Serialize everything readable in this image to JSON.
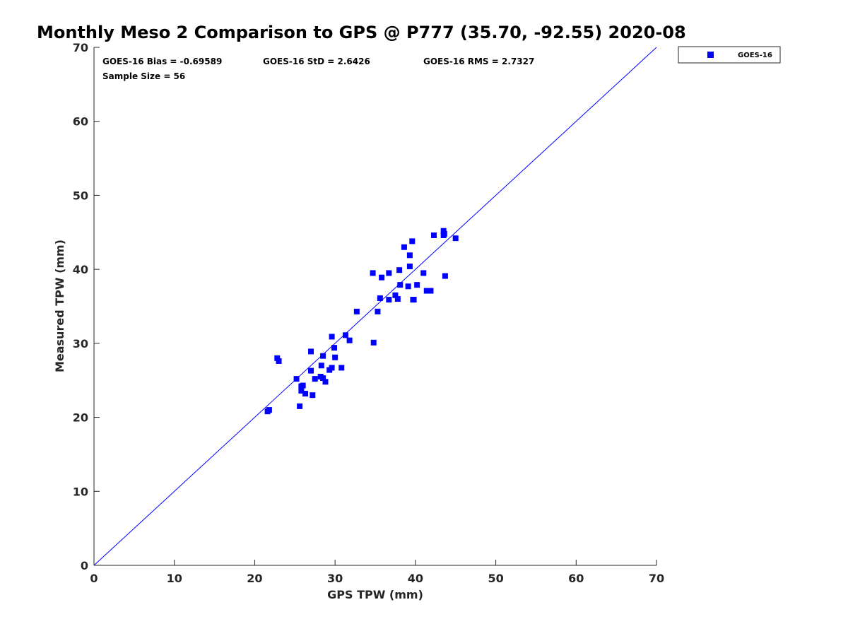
{
  "chart_data": {
    "type": "scatter",
    "title": "Monthly Meso 2 Comparison to GPS @ P777 (35.70, -92.55) 2020-08",
    "xlabel": "GPS TPW (mm)",
    "ylabel": "Measured TPW (mm)",
    "xlim": [
      0,
      70
    ],
    "ylim": [
      0,
      70
    ],
    "xticks": [
      0,
      10,
      20,
      30,
      40,
      50,
      60,
      70
    ],
    "yticks": [
      0,
      10,
      20,
      30,
      40,
      50,
      60,
      70
    ],
    "grid": false,
    "legend_position": "outside top-right",
    "annotations": {
      "bias": "GOES-16 Bias = -0.69589",
      "std": "GOES-16 StD = 2.6426",
      "rms": "GOES-16 RMS = 2.7327",
      "sample": "Sample Size = 56"
    },
    "reference_line": {
      "type": "one-to-one",
      "x": [
        0,
        70
      ],
      "y": [
        0,
        70
      ],
      "color": "#0000ff"
    },
    "series": [
      {
        "name": "GOES-16",
        "color": "#0000ff",
        "marker": "square",
        "points": [
          [
            21.6,
            20.8
          ],
          [
            21.8,
            21.0
          ],
          [
            22.8,
            28.0
          ],
          [
            23.0,
            27.6
          ],
          [
            25.2,
            25.2
          ],
          [
            25.6,
            21.5
          ],
          [
            25.8,
            24.2
          ],
          [
            25.8,
            23.6
          ],
          [
            26.0,
            24.3
          ],
          [
            26.3,
            23.2
          ],
          [
            27.0,
            28.9
          ],
          [
            27.0,
            26.3
          ],
          [
            27.2,
            23.0
          ],
          [
            27.5,
            25.2
          ],
          [
            28.2,
            25.5
          ],
          [
            28.3,
            27.0
          ],
          [
            28.5,
            28.3
          ],
          [
            28.5,
            25.3
          ],
          [
            28.8,
            24.8
          ],
          [
            29.3,
            26.4
          ],
          [
            29.6,
            30.9
          ],
          [
            29.6,
            26.7
          ],
          [
            29.9,
            29.4
          ],
          [
            30.0,
            28.1
          ],
          [
            30.8,
            26.7
          ],
          [
            31.3,
            31.1
          ],
          [
            31.8,
            30.4
          ],
          [
            32.7,
            34.3
          ],
          [
            34.7,
            39.5
          ],
          [
            34.8,
            30.1
          ],
          [
            35.3,
            34.3
          ],
          [
            35.6,
            36.1
          ],
          [
            35.8,
            38.9
          ],
          [
            36.7,
            39.5
          ],
          [
            36.7,
            35.9
          ],
          [
            37.5,
            36.5
          ],
          [
            37.8,
            36.0
          ],
          [
            38.0,
            39.9
          ],
          [
            38.1,
            37.9
          ],
          [
            38.6,
            43.0
          ],
          [
            39.1,
            37.7
          ],
          [
            39.3,
            41.9
          ],
          [
            39.3,
            40.4
          ],
          [
            39.6,
            43.8
          ],
          [
            39.7,
            35.9
          ],
          [
            39.8,
            35.9
          ],
          [
            40.2,
            37.9
          ],
          [
            41.0,
            39.5
          ],
          [
            41.4,
            37.1
          ],
          [
            41.9,
            37.1
          ],
          [
            42.3,
            44.6
          ],
          [
            43.5,
            45.2
          ],
          [
            43.5,
            44.6
          ],
          [
            43.6,
            44.8
          ],
          [
            43.7,
            39.1
          ],
          [
            45.0,
            44.2
          ]
        ]
      }
    ]
  }
}
